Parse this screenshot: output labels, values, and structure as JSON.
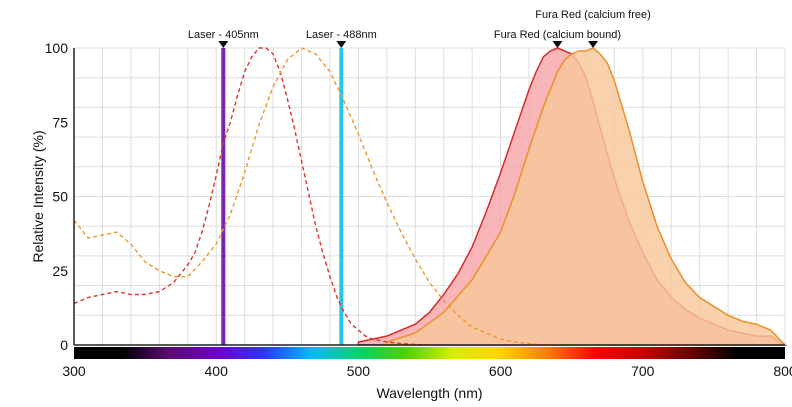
{
  "chart_data": {
    "type": "area",
    "title": "",
    "xlabel": "Wavelength (nm)",
    "ylabel": "Relative Intensity (%)",
    "xlim": [
      300,
      800
    ],
    "ylim": [
      0,
      100
    ],
    "x_ticks": [
      300,
      400,
      500,
      600,
      700,
      800
    ],
    "y_ticks": [
      0,
      25,
      50,
      75,
      100
    ],
    "grid": true,
    "series": [
      {
        "name": "Laser - 405nm",
        "kind": "laser_line",
        "wavelength": 405,
        "color": "#7a22b8"
      },
      {
        "name": "Laser - 488nm",
        "kind": "laser_line",
        "wavelength": 488,
        "color": "#22c6e6"
      },
      {
        "name": "Fura Red (calcium bound) excitation",
        "kind": "dashed_line",
        "color": "#e03030",
        "x": [
          300,
          310,
          320,
          330,
          340,
          350,
          360,
          370,
          380,
          385,
          390,
          395,
          400,
          405,
          410,
          415,
          420,
          425,
          430,
          435,
          440,
          445,
          450,
          455,
          460,
          465,
          470,
          475,
          480,
          485,
          490,
          495,
          500,
          505,
          510,
          520,
          530,
          540,
          550
        ],
        "y": [
          14,
          16,
          17,
          18,
          17,
          17,
          18,
          21,
          27,
          31,
          38,
          47,
          57,
          68,
          75,
          84,
          92,
          97,
          100,
          100,
          98,
          92,
          83,
          73,
          62,
          51,
          40,
          31,
          23,
          16,
          11,
          7,
          5,
          3,
          2,
          1,
          0.5,
          0.2,
          0
        ]
      },
      {
        "name": "Fura Red (calcium free) excitation",
        "kind": "dashed_line",
        "color": "#f0962e",
        "x": [
          300,
          310,
          320,
          330,
          340,
          350,
          360,
          370,
          380,
          390,
          400,
          410,
          420,
          430,
          440,
          450,
          460,
          470,
          480,
          490,
          500,
          510,
          520,
          530,
          540,
          550,
          560,
          570,
          580,
          590,
          600,
          610,
          620,
          630
        ],
        "y": [
          42,
          36,
          37,
          38,
          34,
          28,
          25,
          23,
          23,
          28,
          34,
          44,
          58,
          74,
          87,
          96,
          100,
          98,
          92,
          82,
          71,
          59,
          48,
          38,
          29,
          21,
          15,
          10,
          6,
          4,
          2,
          1,
          0.5,
          0
        ]
      },
      {
        "name": "Fura Red (calcium bound)",
        "kind": "emission_fill",
        "color": "#d62b2b",
        "fill": "#f6a6a8",
        "marker_x": 640,
        "x": [
          500,
          520,
          540,
          550,
          560,
          570,
          580,
          590,
          600,
          610,
          620,
          625,
          630,
          635,
          640,
          645,
          650,
          655,
          660,
          665,
          670,
          680,
          690,
          700,
          710,
          720,
          730,
          740,
          750,
          760,
          770,
          780,
          790,
          800
        ],
        "y": [
          1,
          3,
          7,
          11,
          17,
          24,
          33,
          45,
          58,
          72,
          86,
          92,
          97,
          99,
          100,
          99,
          98,
          95,
          90,
          82,
          73,
          56,
          42,
          31,
          22,
          16,
          12,
          9,
          7,
          5,
          4,
          3,
          3,
          0
        ]
      },
      {
        "name": "Fura Red (calcium free)",
        "kind": "emission_fill",
        "color": "#ee8f2a",
        "fill": "#f8c79a",
        "marker_x": 665,
        "x": [
          520,
          540,
          560,
          580,
          600,
          610,
          620,
          630,
          640,
          645,
          650,
          655,
          660,
          665,
          670,
          675,
          680,
          690,
          700,
          710,
          720,
          730,
          740,
          750,
          760,
          770,
          780,
          790,
          800
        ],
        "y": [
          1,
          4,
          11,
          22,
          38,
          51,
          66,
          80,
          92,
          96,
          98,
          99,
          99,
          100,
          98,
          95,
          89,
          73,
          55,
          40,
          29,
          21,
          16,
          13,
          10,
          8,
          7,
          5,
          0
        ]
      }
    ],
    "annotations": [
      {
        "label": "Laser - 405nm",
        "x": 405
      },
      {
        "label": "Laser - 488nm",
        "x": 488
      },
      {
        "label": "Fura Red (calcium free)",
        "x": 665
      },
      {
        "label": "Fura Red (calcium bound)",
        "x": 640
      }
    ],
    "spectrum_bar": {
      "x_start": 300,
      "x_end": 800,
      "colors": [
        "#000000",
        "#000000",
        "#5a0a72",
        "#6f00c9",
        "#2b35ff",
        "#00b9ff",
        "#00d26a",
        "#4ed100",
        "#d7ee00",
        "#ffd300",
        "#ff7a00",
        "#ff0000",
        "#c80000",
        "#6a0000",
        "#000000",
        "#000000"
      ]
    }
  }
}
